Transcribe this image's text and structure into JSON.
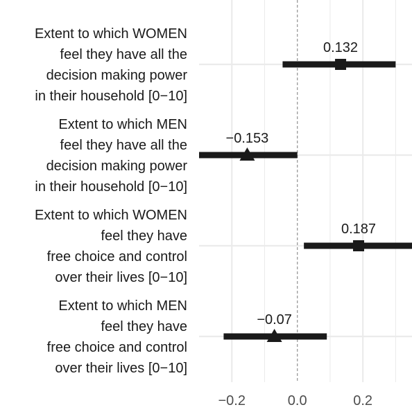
{
  "chart_data": {
    "type": "dot-whisker",
    "xlim": [
      -0.3,
      0.35
    ],
    "x_ticks": [
      -0.2,
      0.0,
      0.2
    ],
    "x_tick_labels": [
      "−0.2",
      "0.0",
      "0.2"
    ],
    "zero_line": 0,
    "grid": true,
    "rows": [
      {
        "label_lines": [
          "Extent to which WOMEN",
          "feel they have all the",
          "decision making power",
          "in their household [0−10]"
        ],
        "estimate": 0.132,
        "label": "0.132",
        "ci_low": -0.045,
        "ci_high": 0.3,
        "marker": "square"
      },
      {
        "label_lines": [
          "Extent to which MEN",
          "feel they have all the",
          "decision making power",
          "in their household [0−10]"
        ],
        "estimate": -0.153,
        "label": "−0.153",
        "ci_low": -0.3,
        "ci_high": 0.0,
        "marker": "triangle"
      },
      {
        "label_lines": [
          "Extent to which WOMEN",
          "feel they have",
          "free choice and control",
          "over their lives [0−10]"
        ],
        "estimate": 0.187,
        "label": "0.187",
        "ci_low": 0.02,
        "ci_high": 0.355,
        "marker": "square"
      },
      {
        "label_lines": [
          "Extent to which MEN",
          "feel they have",
          "free choice and control",
          "over their lives [0−10]"
        ],
        "estimate": -0.07,
        "label": "−0.07",
        "ci_low": -0.225,
        "ci_high": 0.09,
        "marker": "triangle"
      }
    ],
    "colors": {
      "mark": "#1a1a1a",
      "grid": "#ebebeb",
      "zero_line": "#999999",
      "text": "#1a1a1a",
      "tick_text": "#4d4d4d"
    }
  }
}
